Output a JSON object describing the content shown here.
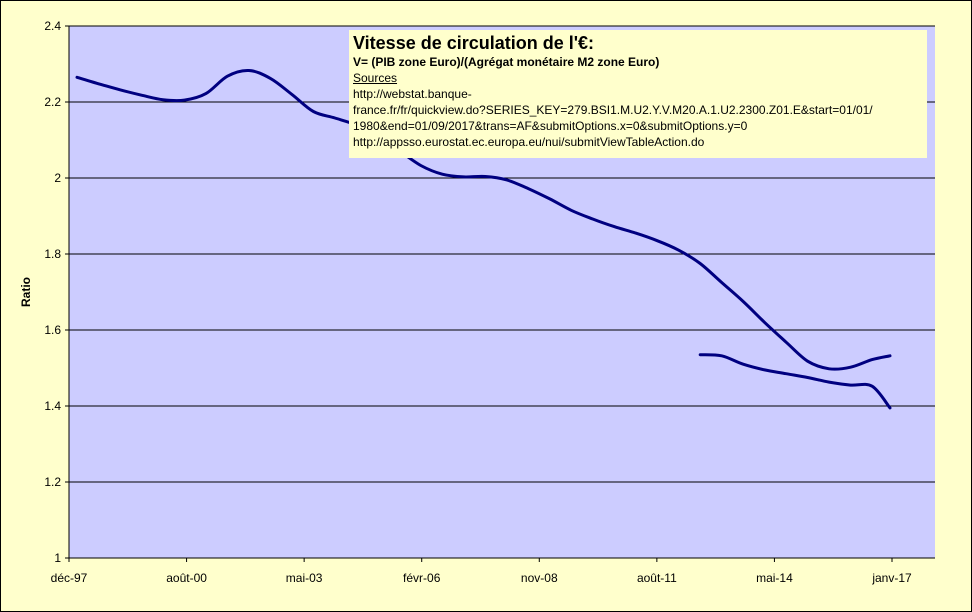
{
  "chart_data": {
    "type": "line",
    "title": "Vitesse de circulation de l'€:",
    "subtitle": "V= (PIB zone Euro)/(Agrégat monétaire M2 zone Euro)",
    "sources_label": "Sources",
    "sources_lines": [
      "http://webstat.banque-",
      "france.fr/fr/quickview.do?SERIES_KEY=279.BSI1.M.U2.Y.V.M20.A.1.U2.2300.Z01.E&start=01/01/",
      "1980&end=01/09/2017&trans=AF&submitOptions.x=0&submitOptions.y=0",
      "http://appsso.eurostat.ec.europa.eu/nui/submitViewTableAction.do"
    ],
    "ylabel": "Ratio",
    "xlabel": "",
    "ylim": [
      1,
      2.4
    ],
    "yticks": [
      "1",
      "1.2",
      "1.4",
      "1.6",
      "1.8",
      "2",
      "2.2",
      "2.4"
    ],
    "xticks": [
      "déc-97",
      "août-00",
      "mai-03",
      "févr-06",
      "nov-08",
      "août-11",
      "mai-14",
      "janv-17"
    ],
    "x_start": "déc-97",
    "x_end": "janv-17",
    "grid": true,
    "colors": {
      "line": "#000080",
      "plot_bg": "#ccccff",
      "chart_bg": "#ffffcc"
    },
    "series": [
      {
        "x": [
          "1997-12",
          "1998-06",
          "1998-12",
          "1999-06",
          "1999-12",
          "2000-06",
          "2000-12",
          "2001-06",
          "2001-12",
          "2002-06",
          "2002-12",
          "2003-06",
          "2003-12",
          "2004-06",
          "2004-12",
          "2005-06",
          "2005-12",
          "2006-06",
          "2006-12",
          "2007-06",
          "2007-12",
          "2008-06",
          "2008-12",
          "2009-06",
          "2009-12",
          "2010-06",
          "2010-12",
          "2011-06",
          "2011-12",
          "2012-06",
          "2012-12",
          "2013-06",
          "2013-12",
          "2014-06",
          "2014-12",
          "2015-06",
          "2015-12",
          "2016-06",
          "2016-11"
        ],
        "y": [
          2.265,
          2.248,
          2.232,
          2.218,
          2.206,
          2.205,
          2.222,
          2.268,
          2.283,
          2.262,
          2.22,
          2.175,
          2.158,
          2.14,
          2.115,
          2.072,
          2.033,
          2.01,
          2.003,
          2.004,
          1.995,
          1.972,
          1.945,
          1.915,
          1.892,
          1.872,
          1.855,
          1.835,
          1.81,
          1.775,
          1.725,
          1.675,
          1.62,
          1.568,
          1.518,
          1.498,
          1.502,
          1.522,
          1.532
        ]
      },
      {
        "x": [
          "2012-06",
          "2012-12",
          "2013-06",
          "2013-12",
          "2014-06",
          "2014-12",
          "2015-06",
          "2015-12",
          "2016-06",
          "2016-11"
        ],
        "y": [
          1.535,
          1.532,
          1.51,
          1.495,
          1.485,
          1.475,
          1.463,
          1.455,
          1.452,
          1.395
        ]
      }
    ]
  }
}
